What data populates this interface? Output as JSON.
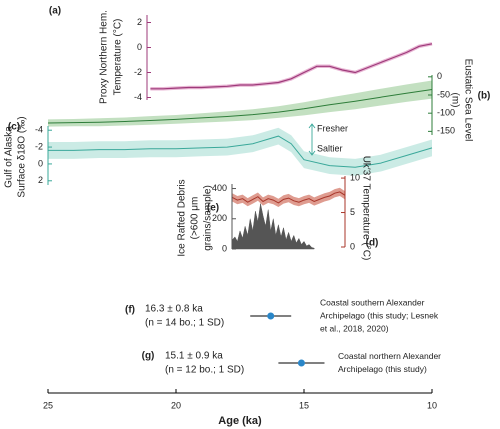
{
  "x_axis": {
    "xlabel": "Age (ka)",
    "xlim": [
      25,
      10
    ],
    "xticks": [
      25,
      20,
      15,
      10
    ]
  },
  "chart_data": [
    {
      "type": "line",
      "panel": "(a)",
      "ylabel": [
        "Proxy Northern Hem.",
        "Temperature (°C)"
      ],
      "color": "#9e3a7a",
      "x": [
        21,
        20.5,
        20,
        19.5,
        19,
        18.5,
        18,
        17.5,
        17,
        16.5,
        16,
        15.5,
        15,
        14.5,
        14,
        13.5,
        13,
        12.5,
        12,
        11.5,
        11,
        10.5,
        10
      ],
      "values": [
        -3.3,
        -3.3,
        -3.25,
        -3.2,
        -3.2,
        -3.15,
        -3.1,
        -3.0,
        -3.0,
        -2.9,
        -2.8,
        -2.5,
        -2.0,
        -1.5,
        -1.5,
        -1.8,
        -2.0,
        -1.6,
        -1.2,
        -0.8,
        -0.4,
        0.1,
        0.3
      ],
      "ylim": [
        -4.2,
        2.6
      ],
      "yticks": [
        -4,
        -2,
        0,
        2
      ]
    },
    {
      "type": "band",
      "panel": "(b)",
      "ylabel": [
        "Eustatic Sea Level",
        "(m)"
      ],
      "color": "#2e7d3a",
      "band_color": "#b9dbb6",
      "x": [
        25,
        24,
        23,
        22,
        21,
        20,
        19,
        18,
        17,
        16,
        15,
        14,
        13,
        12,
        11,
        10
      ],
      "values": [
        -127,
        -126,
        -125,
        -123,
        -120,
        -117,
        -113,
        -109,
        -104,
        -97,
        -88,
        -77,
        -67,
        -56,
        -45,
        -35
      ],
      "lower": [
        -137,
        -136,
        -136,
        -134,
        -132,
        -129,
        -126,
        -123,
        -119,
        -113,
        -106,
        -97,
        -89,
        -79,
        -69,
        -60
      ],
      "upper": [
        -117,
        -116,
        -114,
        -112,
        -108,
        -105,
        -100,
        -95,
        -89,
        -81,
        -70,
        -57,
        -45,
        -33,
        -21,
        -10
      ],
      "ylim": [
        -160,
        5
      ],
      "yticks": [
        -150,
        -100,
        -50,
        0
      ]
    },
    {
      "type": "band",
      "panel": "(c)",
      "ylabel": [
        "Gulf of Alaska",
        "Surface δ18O (‰)"
      ],
      "color": "#3aa89a",
      "band_color": "#c2e7e0",
      "x": [
        25,
        24,
        23,
        22,
        21,
        20,
        19,
        18,
        17,
        16,
        15.5,
        15,
        14,
        13,
        12,
        11,
        10
      ],
      "values": [
        -1.6,
        -1.6,
        -1.7,
        -1.7,
        -1.8,
        -1.8,
        -1.9,
        -2.0,
        -2.4,
        -3.3,
        -2.4,
        -0.5,
        0.2,
        0.4,
        -0.1,
        -1.0,
        -1.9
      ],
      "uncertainty": 1.0,
      "annotations": [
        "Fresher",
        "Saltier"
      ],
      "ylim": [
        2.5,
        -4.5
      ],
      "yticks": [
        -4,
        -2,
        0,
        2
      ]
    },
    {
      "type": "band",
      "panel": "(d)",
      "ylabel": [
        "Uk′37 Temperature (°C)"
      ],
      "color": "#a8362a",
      "band_color": "#d98b7c",
      "x": [
        17.8,
        17.6,
        17.4,
        17.2,
        17.0,
        16.8,
        16.6,
        16.4,
        16.2,
        16.0,
        15.8,
        15.6,
        15.4,
        15.2,
        15.0,
        14.8,
        14.6,
        14.4,
        14.2,
        14.0,
        13.8,
        13.6,
        13.4
      ],
      "values": [
        7.2,
        6.8,
        7.0,
        6.5,
        6.9,
        7.3,
        6.6,
        7.0,
        6.8,
        6.4,
        6.9,
        7.1,
        6.7,
        6.5,
        6.8,
        7.0,
        6.6,
        6.9,
        7.2,
        7.4,
        7.8,
        8.0,
        7.5
      ],
      "uncertainty": 0.6,
      "ylim": [
        0,
        10.3
      ],
      "yticks": [
        0,
        5,
        10
      ]
    },
    {
      "type": "area",
      "panel": "(e)",
      "ylabel": [
        "Ice Rafted Debris",
        "(>600 μm",
        "grains/sample)"
      ],
      "color": "#555555",
      "x": [
        17.8,
        17.7,
        17.6,
        17.5,
        17.4,
        17.3,
        17.2,
        17.1,
        17.0,
        16.9,
        16.8,
        16.7,
        16.6,
        16.5,
        16.4,
        16.3,
        16.2,
        16.1,
        16.0,
        15.9,
        15.8,
        15.7,
        15.6,
        15.5,
        15.4,
        15.3,
        15.2,
        15.1,
        15.0,
        14.9,
        14.8,
        14.7,
        14.6
      ],
      "values": [
        60,
        80,
        50,
        120,
        70,
        150,
        90,
        200,
        120,
        250,
        180,
        300,
        220,
        150,
        260,
        120,
        200,
        90,
        160,
        80,
        140,
        60,
        110,
        50,
        90,
        40,
        70,
        30,
        50,
        20,
        30,
        10,
        5
      ],
      "ylim": [
        0,
        430
      ],
      "yticks": [
        0,
        200,
        400
      ]
    },
    {
      "type": "errorbar",
      "panel": "(f)",
      "label": [
        "16.3 ± 0.8 ka",
        "(n = 14 bo.; 1 SD)"
      ],
      "value": 16.3,
      "error": 0.8,
      "color": "#2a86c8",
      "description": [
        "Coastal southern Alexander",
        "Archipelago (this study; Lesnek",
        "et al., 2018, 2020)"
      ]
    },
    {
      "type": "errorbar",
      "panel": "(g)",
      "label": [
        "15.1 ± 0.9 ka",
        "(n = 12 bo.; 1 SD)"
      ],
      "value": 15.1,
      "error": 0.9,
      "color": "#2a86c8",
      "description": [
        "Coastal northern Alexander",
        "Archipelago (this study)"
      ]
    }
  ]
}
